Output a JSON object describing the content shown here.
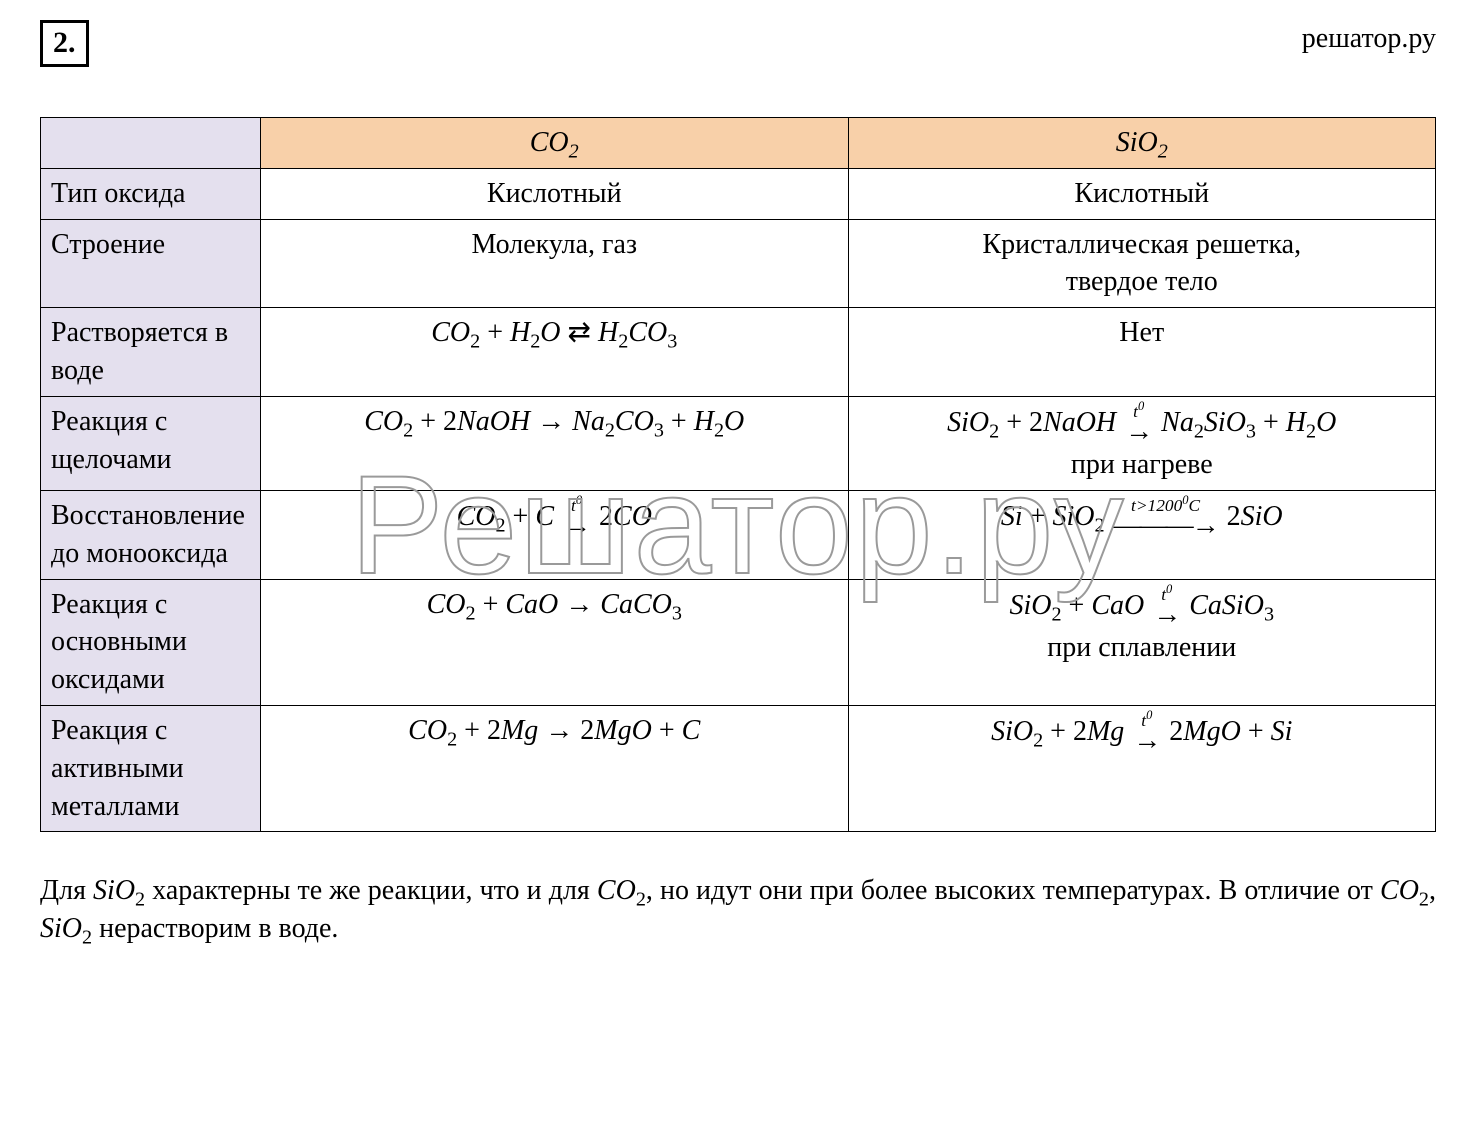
{
  "header": {
    "question_number": "2.",
    "brand": "решатор.ру"
  },
  "watermark": "Решатор.ру",
  "table": {
    "col_blank": "",
    "col_co2_html": "<span class='chem-i'>CO</span><sub>2</sub>",
    "col_sio2_html": "<span class='chem-i'>SiO</span><sub>2</sub>",
    "rows": [
      {
        "label": "Тип оксида",
        "co2_html": "Кислотный",
        "sio2_html": "Кислотный"
      },
      {
        "label": "Строение",
        "co2_html": "Молекула, газ",
        "sio2_html": "Кристаллическая решетка,<br>твердое тело"
      },
      {
        "label": "Растворяется в воде",
        "co2_html": "<span class='chem-i'>CO</span><sub>2</sub> + <span class='chem-i'>H</span><sub>2</sub><span class='chem-i'>O</span> ⇄ <span class='chem-i'>H</span><sub>2</sub><span class='chem-i'>CO</span><sub>3</sub>",
        "sio2_html": "Нет"
      },
      {
        "label": "Реакция с щелочами",
        "co2_html": "<span class='chem-i'>CO</span><sub>2</sub> + 2<span class='chem-i'>NaOH</span> → <span class='chem-i'>Na</span><sub>2</sub><span class='chem-i'>CO</span><sub>3</sub> + <span class='chem-i'>H</span><sub>2</sub><span class='chem-i'>O</span>",
        "sio2_html": "<span class='chem-i'>SiO</span><sub>2</sub> + 2<span class='chem-i'>NaOH</span> <span class='overarrow'><span class='ot'>t<sup>0</sup></span><span class='arr'>→</span></span> <span class='chem-i'>Na</span><sub>2</sub><span class='chem-i'>SiO</span><sub>3</sub> + <span class='chem-i'>H</span><sub>2</sub><span class='chem-i'>O</span><br>при нагреве"
      },
      {
        "label": "Восстановление до монооксида",
        "co2_html": "<span class='chem-i'>CO</span><sub>2</sub> + <span class='chem-i'>C</span> <span class='overarrow'><span class='ot'>t<sup>0</sup></span><span class='arr'>→</span></span> 2<span class='chem-i'>CO</span>",
        "sio2_html": "<span class='chem-i'>Si</span> + <span class='chem-i'>SiO</span><sub>2</sub> <span class='overarrow long'><span class='ot'>t&gt;1200<sup>0</sup>C</span><span class='arr'>———→</span></span> 2<span class='chem-i'>SiO</span>"
      },
      {
        "label": "Реакция с основными оксидами",
        "co2_html": "<span class='chem-i'>CO</span><sub>2</sub> + <span class='chem-i'>CaO</span> → <span class='chem-i'>CaCO</span><sub>3</sub>",
        "sio2_html": "<span class='chem-i'>SiO</span><sub>2</sub> + <span class='chem-i'>CaO</span> <span class='overarrow'><span class='ot'>t<sup>0</sup></span><span class='arr'>→</span></span> <span class='chem-i'>CaSiO</span><sub>3</sub><br>при сплавлении"
      },
      {
        "label": "Реакция с активными металлами",
        "co2_html": "<span class='chem-i'>CO</span><sub>2</sub> + 2<span class='chem-i'>Mg</span> → 2<span class='chem-i'>MgO</span> + <span class='chem-i'>C</span>",
        "sio2_html": "<span class='chem-i'>SiO</span><sub>2</sub> + 2<span class='chem-i'>Mg</span> <span class='overarrow'><span class='ot'>t<sup>0</sup></span><span class='arr'>→</span></span> 2<span class='chem-i'>MgO</span> + <span class='chem-i'>Si</span>"
      }
    ]
  },
  "footnote_html": "Для <span class='chem-i'>SiO</span><sub>2</sub> характерны те же реакции, что и для <span class='chem-i'>CO</span><sub>2</sub>, но идут они при более высоких температурах. В отличие от <span class='chem-i'>CO</span><sub>2</sub>, <span class='chem-i'>SiO</span><sub>2</sub> нерастворим в воде.",
  "colors": {
    "header_orange": "#f8d0a9",
    "label_lavender": "#e4e0ee",
    "border": "#000000",
    "watermark_stroke": "#9a9a9a"
  }
}
